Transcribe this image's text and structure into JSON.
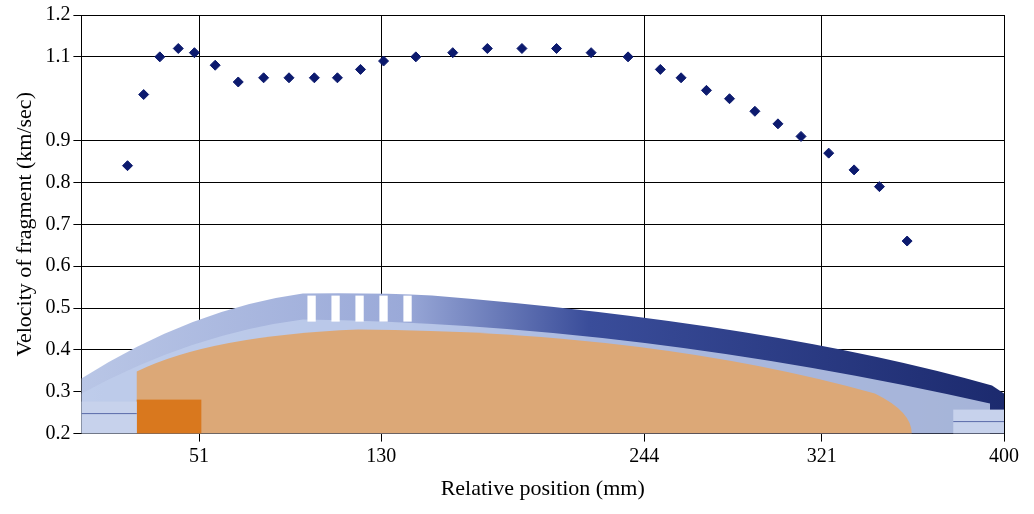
{
  "chart_data": {
    "type": "scatter",
    "x_label": "Relative position (mm)",
    "y_label": "Velocity of fragment (km/sec)",
    "x": [
      20,
      27,
      34,
      42,
      49,
      58,
      68,
      79,
      90,
      101,
      111,
      121,
      131,
      145,
      161,
      176,
      191,
      206,
      221,
      237,
      251,
      260,
      271,
      281,
      292,
      302,
      312,
      324,
      335,
      346,
      358
    ],
    "values": [
      0.84,
      1.01,
      1.1,
      1.12,
      1.11,
      1.08,
      1.04,
      1.05,
      1.05,
      1.05,
      1.05,
      1.07,
      1.09,
      1.1,
      1.11,
      1.12,
      1.12,
      1.12,
      1.11,
      1.1,
      1.07,
      1.05,
      1.02,
      1.0,
      0.97,
      0.94,
      0.91,
      0.87,
      0.83,
      0.79,
      0.66
    ],
    "color": "#0c1a6e",
    "marker": "diamond",
    "xlim": [
      0,
      400
    ],
    "xticks": [
      51,
      130,
      244,
      321,
      400
    ],
    "ylim": [
      0.2,
      1.2
    ],
    "yticks": [
      0.2,
      0.3,
      0.4,
      0.5,
      0.6,
      0.7,
      0.8,
      0.9,
      1.1,
      1.2
    ],
    "grid": true
  }
}
